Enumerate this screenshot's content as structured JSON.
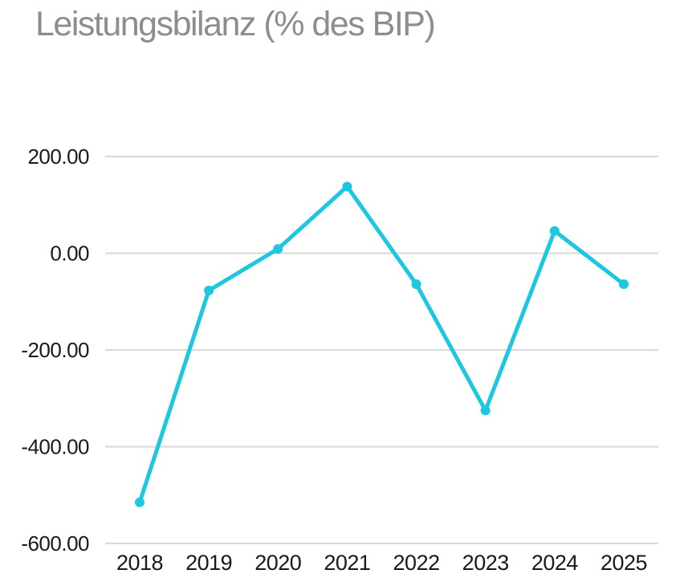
{
  "title": "Leistungsbilanz (% des BIP)",
  "colors": {
    "line": "#1dc7e0",
    "marker": "#1dc7e0",
    "grid": "#d9d9d9",
    "title": "#8b8e8f",
    "tick_label": "#1a1a1a",
    "background": "#ffffff"
  },
  "chart_data": {
    "type": "line",
    "title": "Leistungsbilanz (% des BIP)",
    "categories": [
      "2018",
      "2019",
      "2020",
      "2021",
      "2022",
      "2023",
      "2024",
      "2025"
    ],
    "series": [
      {
        "name": "Leistungsbilanz",
        "values": [
          -515,
          -77,
          9,
          138,
          -64,
          -325,
          46,
          -64
        ]
      }
    ],
    "xlabel": "",
    "ylabel": "",
    "ylim": [
      -600,
      200
    ],
    "yticks": [
      200,
      0,
      -200,
      -400,
      -600
    ],
    "ytick_decimals": 2,
    "grid": true,
    "legend_position": "none",
    "marker": "circle"
  }
}
